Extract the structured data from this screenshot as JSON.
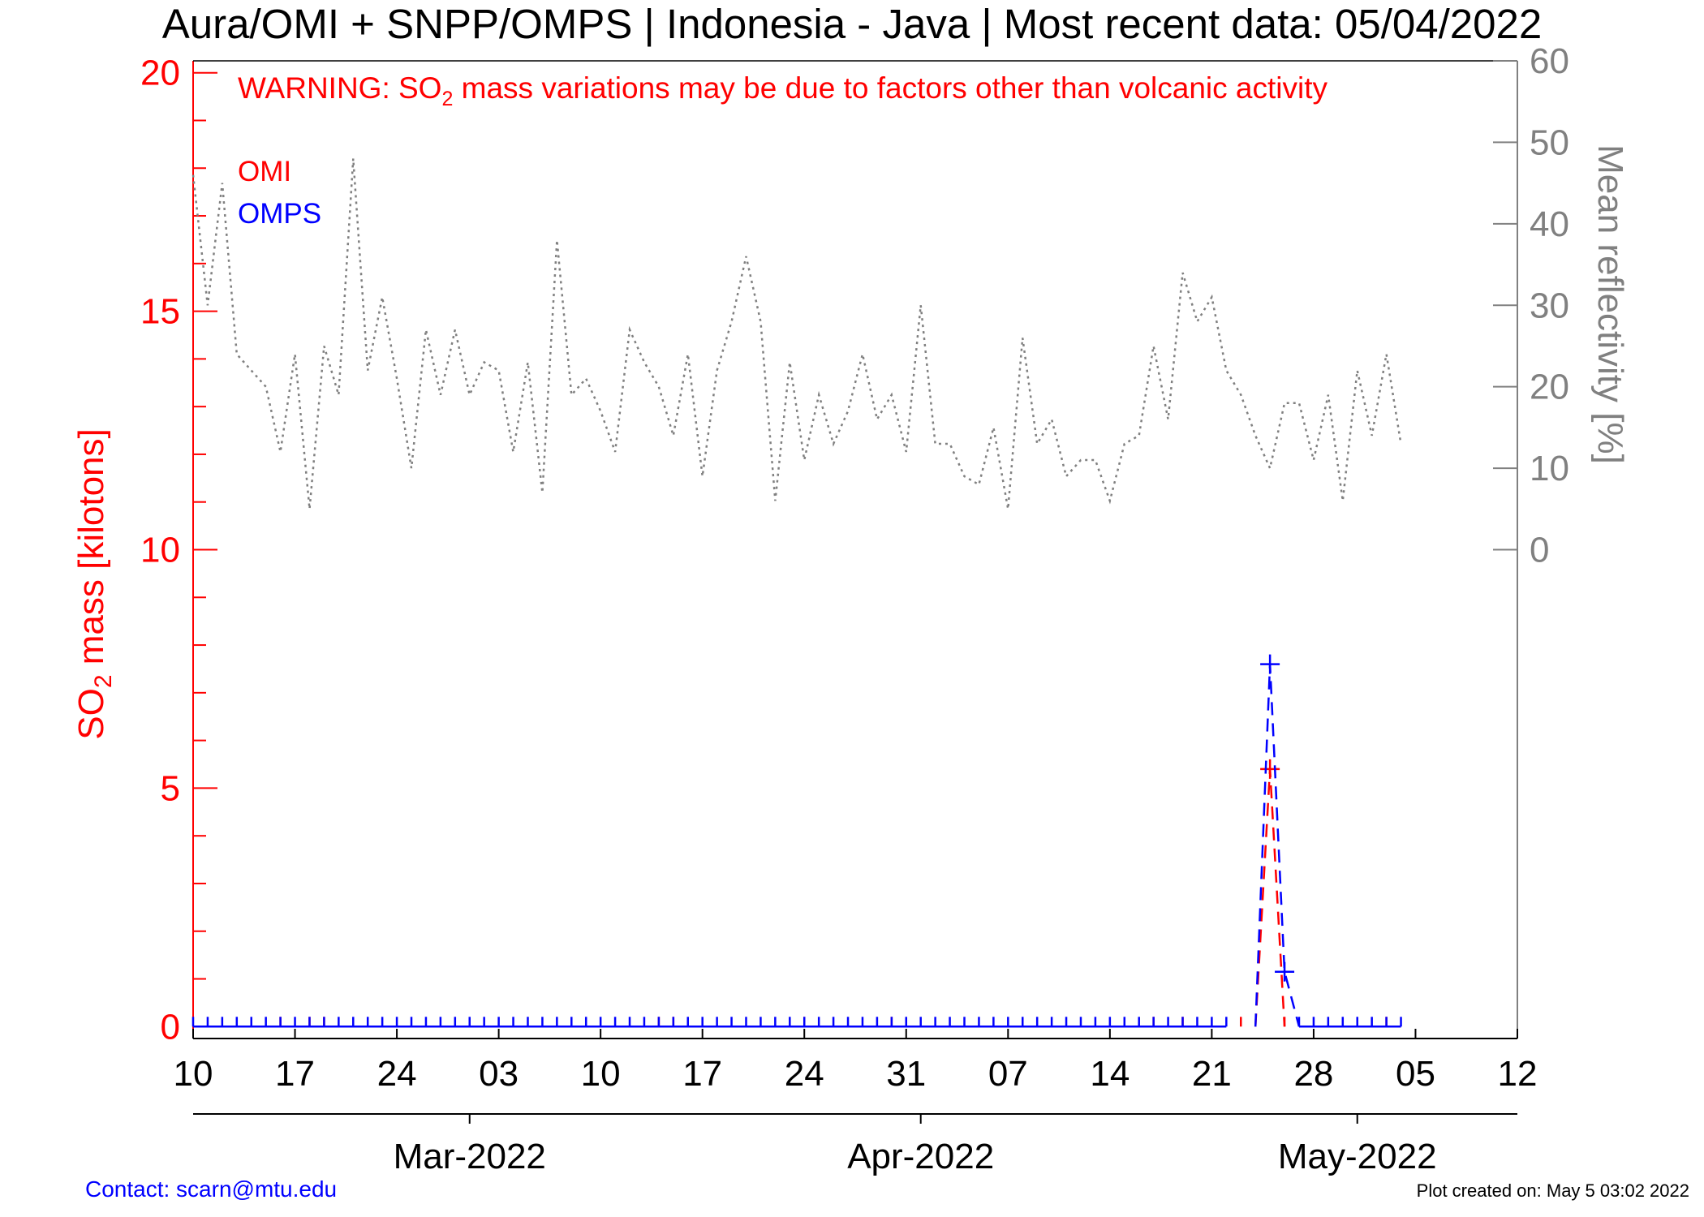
{
  "header": {
    "title": "Aura/OMI + SNPP/OMPS | Indonesia - Java | Most recent data: 05/04/2022",
    "warning_prefix": "WARNING: SO",
    "warning_sub": "2",
    "warning_suffix": " mass variations may be due to factors other than volcanic activity"
  },
  "legend": {
    "omi": "OMI",
    "omps": "OMPS"
  },
  "axes": {
    "ylabel_left_prefix": "SO",
    "ylabel_left_sub": "2",
    "ylabel_left_suffix": " mass [kilotons]",
    "ylabel_right": "Mean reflectivity [%]"
  },
  "footer": {
    "contact": "Contact: scarn@mtu.edu",
    "created": "Plot created on: May  5 03:02 2022"
  },
  "colors": {
    "omi": "#ff0000",
    "omps": "#0000ff",
    "reflectivity": "#808080",
    "left_axis": "#ff0000",
    "right_axis": "#808080"
  },
  "chart_data": {
    "type": "line",
    "x_range": [
      "2022-02-10",
      "2022-05-12"
    ],
    "x_ticks": [
      {
        "date": "2022-02-10",
        "label": "10"
      },
      {
        "date": "2022-02-17",
        "label": "17"
      },
      {
        "date": "2022-02-24",
        "label": "24"
      },
      {
        "date": "2022-03-03",
        "label": "03"
      },
      {
        "date": "2022-03-10",
        "label": "10"
      },
      {
        "date": "2022-03-17",
        "label": "17"
      },
      {
        "date": "2022-03-24",
        "label": "24"
      },
      {
        "date": "2022-03-31",
        "label": "31"
      },
      {
        "date": "2022-04-07",
        "label": "07"
      },
      {
        "date": "2022-04-14",
        "label": "14"
      },
      {
        "date": "2022-04-21",
        "label": "21"
      },
      {
        "date": "2022-04-28",
        "label": "28"
      },
      {
        "date": "2022-05-05",
        "label": "05"
      },
      {
        "date": "2022-05-12",
        "label": "12"
      }
    ],
    "month_ticks": [
      {
        "date": "2022-03-01",
        "label": "Mar-2022"
      },
      {
        "date": "2022-04-01",
        "label": "Apr-2022"
      },
      {
        "date": "2022-05-01",
        "label": "May-2022"
      }
    ],
    "y_left": {
      "label": "SO2 mass [kilotons]",
      "range": [
        -0.25,
        20.25
      ],
      "ticks": [
        0,
        5,
        10,
        15,
        20
      ]
    },
    "y_right": {
      "label": "Mean reflectivity [%]",
      "range": [
        -60,
        60
      ],
      "ticks": [
        0,
        10,
        20,
        30,
        40,
        50,
        60
      ]
    },
    "omi_nonzero": [
      {
        "date": "2022-04-25",
        "value": 5.4
      }
    ],
    "omi_zero_points": [
      "2022-02-16",
      "2022-02-18",
      "2022-02-19",
      "2022-03-14",
      "2022-03-15",
      "2022-03-24",
      "2022-03-30",
      "2022-04-17",
      "2022-04-19",
      "2022-04-23",
      "2022-04-26",
      "2022-05-03"
    ],
    "omps_nonzero": [
      {
        "date": "2022-04-25",
        "value": 7.6
      },
      {
        "date": "2022-04-26",
        "value": 1.15
      }
    ],
    "omps_range": [
      "2022-02-10",
      "2022-05-04"
    ],
    "omps_gap": [
      "2022-04-23",
      "2022-04-24",
      "2022-04-25",
      "2022-04-26"
    ],
    "reflectivity": [
      {
        "date": "2022-02-10",
        "value": 46
      },
      {
        "date": "2022-02-11",
        "value": 30
      },
      {
        "date": "2022-02-12",
        "value": 45
      },
      {
        "date": "2022-02-13",
        "value": 24
      },
      {
        "date": "2022-02-14",
        "value": 22
      },
      {
        "date": "2022-02-15",
        "value": 20
      },
      {
        "date": "2022-02-16",
        "value": 12
      },
      {
        "date": "2022-02-17",
        "value": 24
      },
      {
        "date": "2022-02-18",
        "value": 5
      },
      {
        "date": "2022-02-19",
        "value": 25
      },
      {
        "date": "2022-02-20",
        "value": 19
      },
      {
        "date": "2022-02-21",
        "value": 48
      },
      {
        "date": "2022-02-22",
        "value": 22
      },
      {
        "date": "2022-02-23",
        "value": 31
      },
      {
        "date": "2022-02-24",
        "value": 21
      },
      {
        "date": "2022-02-25",
        "value": 10
      },
      {
        "date": "2022-02-26",
        "value": 27
      },
      {
        "date": "2022-02-27",
        "value": 19
      },
      {
        "date": "2022-02-28",
        "value": 27
      },
      {
        "date": "2022-03-01",
        "value": 19
      },
      {
        "date": "2022-03-02",
        "value": 23
      },
      {
        "date": "2022-03-03",
        "value": 22
      },
      {
        "date": "2022-03-04",
        "value": 12
      },
      {
        "date": "2022-03-05",
        "value": 23
      },
      {
        "date": "2022-03-06",
        "value": 7
      },
      {
        "date": "2022-03-07",
        "value": 38
      },
      {
        "date": "2022-03-08",
        "value": 19
      },
      {
        "date": "2022-03-09",
        "value": 21
      },
      {
        "date": "2022-03-10",
        "value": 17
      },
      {
        "date": "2022-03-11",
        "value": 12
      },
      {
        "date": "2022-03-12",
        "value": 27
      },
      {
        "date": "2022-03-13",
        "value": 23
      },
      {
        "date": "2022-03-14",
        "value": 20
      },
      {
        "date": "2022-03-15",
        "value": 14
      },
      {
        "date": "2022-03-16",
        "value": 24
      },
      {
        "date": "2022-03-17",
        "value": 9
      },
      {
        "date": "2022-03-18",
        "value": 22
      },
      {
        "date": "2022-03-19",
        "value": 28
      },
      {
        "date": "2022-03-20",
        "value": 36
      },
      {
        "date": "2022-03-21",
        "value": 28
      },
      {
        "date": "2022-03-22",
        "value": 6
      },
      {
        "date": "2022-03-23",
        "value": 23
      },
      {
        "date": "2022-03-24",
        "value": 11
      },
      {
        "date": "2022-03-25",
        "value": 19
      },
      {
        "date": "2022-03-26",
        "value": 13
      },
      {
        "date": "2022-03-27",
        "value": 17
      },
      {
        "date": "2022-03-28",
        "value": 24
      },
      {
        "date": "2022-03-29",
        "value": 16
      },
      {
        "date": "2022-03-30",
        "value": 19
      },
      {
        "date": "2022-03-31",
        "value": 12
      },
      {
        "date": "2022-04-01",
        "value": 30
      },
      {
        "date": "2022-04-02",
        "value": 13
      },
      {
        "date": "2022-04-03",
        "value": 13
      },
      {
        "date": "2022-04-04",
        "value": 9
      },
      {
        "date": "2022-04-05",
        "value": 8
      },
      {
        "date": "2022-04-06",
        "value": 15
      },
      {
        "date": "2022-04-07",
        "value": 5
      },
      {
        "date": "2022-04-08",
        "value": 26
      },
      {
        "date": "2022-04-09",
        "value": 13
      },
      {
        "date": "2022-04-10",
        "value": 16
      },
      {
        "date": "2022-04-11",
        "value": 9
      },
      {
        "date": "2022-04-12",
        "value": 11
      },
      {
        "date": "2022-04-13",
        "value": 11
      },
      {
        "date": "2022-04-14",
        "value": 6
      },
      {
        "date": "2022-04-15",
        "value": 13
      },
      {
        "date": "2022-04-16",
        "value": 14
      },
      {
        "date": "2022-04-17",
        "value": 25
      },
      {
        "date": "2022-04-18",
        "value": 16
      },
      {
        "date": "2022-04-19",
        "value": 34
      },
      {
        "date": "2022-04-20",
        "value": 28
      },
      {
        "date": "2022-04-21",
        "value": 31
      },
      {
        "date": "2022-04-22",
        "value": 22
      },
      {
        "date": "2022-04-23",
        "value": 19
      },
      {
        "date": "2022-04-24",
        "value": 14
      },
      {
        "date": "2022-04-25",
        "value": 10
      },
      {
        "date": "2022-04-26",
        "value": 18
      },
      {
        "date": "2022-04-27",
        "value": 18
      },
      {
        "date": "2022-04-28",
        "value": 11
      },
      {
        "date": "2022-04-29",
        "value": 19
      },
      {
        "date": "2022-04-30",
        "value": 6
      },
      {
        "date": "2022-05-01",
        "value": 22
      },
      {
        "date": "2022-05-02",
        "value": 14
      },
      {
        "date": "2022-05-03",
        "value": 24
      },
      {
        "date": "2022-05-04",
        "value": 13
      }
    ]
  }
}
